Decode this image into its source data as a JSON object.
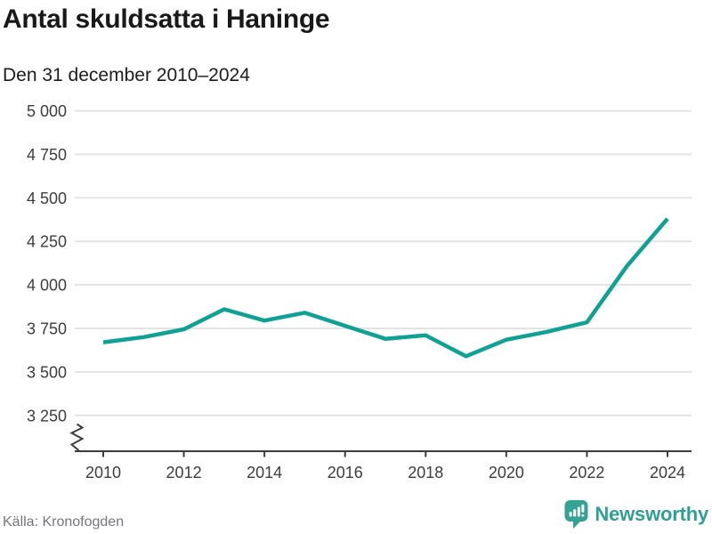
{
  "title": "Antal skuldsatta i Haninge",
  "subtitle": "Den 31 december 2010–2024",
  "source": "Källa: Kronofogden",
  "branding": {
    "name": "Newsworthy",
    "logo_icon": "newsworthy-speech-bubble-bar-chart-icon",
    "logo_color": "#35a294"
  },
  "colors": {
    "series_line": "#0fa294",
    "gridline": "#e3e3e3",
    "axis": "#3d3d3d",
    "tick_label": "#3d3d3d",
    "title_text": "#191919",
    "source_text": "#75757d"
  },
  "chart_data": {
    "type": "line",
    "title": "Antal skuldsatta i Haninge",
    "subtitle": "Den 31 december 2010–2024",
    "xlabel": "",
    "ylabel": "",
    "x": [
      2010,
      2011,
      2012,
      2013,
      2014,
      2015,
      2016,
      2017,
      2018,
      2019,
      2020,
      2021,
      2022,
      2023,
      2024
    ],
    "series": [
      {
        "name": "Antal skuldsatta",
        "color": "#0fa294",
        "values": [
          3670,
          3700,
          3745,
          3860,
          3795,
          3840,
          3765,
          3690,
          3710,
          3590,
          3685,
          3730,
          3785,
          4110,
          4380
        ]
      }
    ],
    "ylim": [
      3250,
      5000
    ],
    "ymax_for_scale": 5000,
    "axis_break": true,
    "yticks": [
      3250,
      3500,
      3750,
      4000,
      4250,
      4500,
      4750,
      5000
    ],
    "ytick_labels": [
      "3 250",
      "3 500",
      "3 750",
      "4 000",
      "4 250",
      "4 500",
      "4 750",
      "5 000"
    ],
    "xticks": [
      2010,
      2012,
      2014,
      2016,
      2018,
      2020,
      2022,
      2024
    ],
    "xtick_labels": [
      "2010",
      "2012",
      "2014",
      "2016",
      "2018",
      "2020",
      "2022",
      "2024"
    ],
    "grid": "horizontal",
    "legend": "none"
  }
}
